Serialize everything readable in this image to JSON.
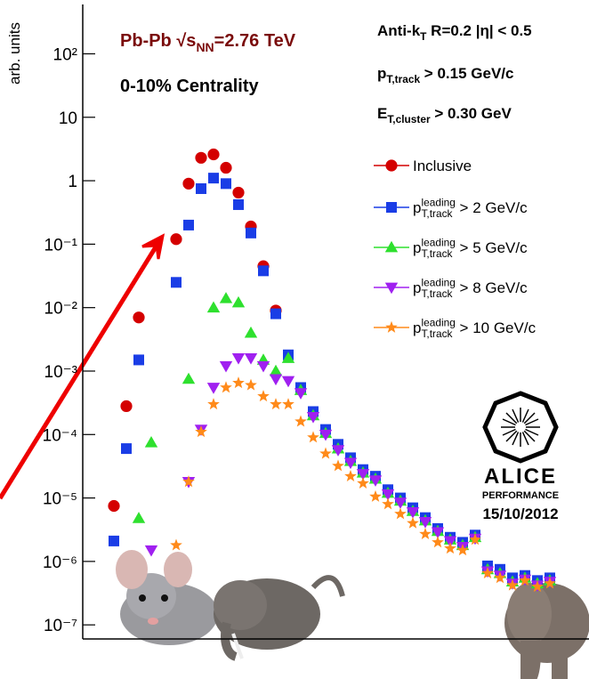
{
  "chart_data": {
    "type": "scatter",
    "ylabel": "arb. units",
    "ylog": true,
    "xlim": [
      -2.5,
      38
    ],
    "ylim": [
      6e-08,
      600
    ],
    "yticks": [
      {
        "value": 1e-07,
        "label": "10⁻⁷"
      },
      {
        "value": 1e-06,
        "label": "10⁻⁶"
      },
      {
        "value": 1e-05,
        "label": "10⁻⁵"
      },
      {
        "value": 0.0001,
        "label": "10⁻⁴"
      },
      {
        "value": 0.001,
        "label": "10⁻³"
      },
      {
        "value": 0.01,
        "label": "10⁻²"
      },
      {
        "value": 0.1,
        "label": "10⁻¹"
      },
      1,
      10,
      {
        "value": 100,
        "label": "10²"
      }
    ],
    "annotations": [
      "Pb-Pb √s_{NN}=2.76 TeV",
      "0-10% Centrality",
      "Anti-k_{T} R=0.2 |η| < 0.5",
      "p_{T,track} > 0.15 GeV/c",
      "E_{T,cluster} > 0.30 GeV"
    ],
    "logo": [
      "ALICE",
      "PERFORMANCE",
      "15/10/2012"
    ],
    "legend": "upper right",
    "series": [
      {
        "name": "Inclusive",
        "color": "#d40000",
        "marker": "circle",
        "x": [
          0,
          1,
          2,
          5,
          6,
          7,
          8,
          9,
          10,
          11,
          12,
          13
        ],
        "values": [
          7.5e-06,
          0.00028,
          0.007,
          0.12,
          0.9,
          2.3,
          2.6,
          1.6,
          0.65,
          0.19,
          0.045,
          0.009
        ]
      },
      {
        "name": "p_{T,track}^{leading} > 2 GeV/c",
        "color": "#1a3de6",
        "marker": "square",
        "x": [
          0,
          1,
          2,
          5,
          6,
          7,
          8,
          9,
          10,
          11,
          12,
          13,
          14,
          15,
          16,
          17,
          18,
          19,
          20,
          21,
          22,
          23,
          24,
          25,
          26,
          27,
          28,
          29,
          30,
          31,
          32,
          33,
          34,
          35
        ],
        "values": [
          2.1e-06,
          6e-05,
          0.0015,
          0.025,
          0.2,
          0.75,
          1.1,
          0.9,
          0.42,
          0.15,
          0.038,
          0.008,
          0.0018,
          0.00055,
          0.00023,
          0.00012,
          7e-05,
          4.3e-05,
          2.8e-05,
          2.2e-05,
          1.35e-05,
          1e-05,
          7e-06,
          4.9e-06,
          3.3e-06,
          2.4e-06,
          2e-06,
          2.6e-06,
          8.5e-07,
          7.5e-07,
          5.5e-07,
          6e-07,
          5e-07,
          5.5e-07
        ]
      },
      {
        "name": "p_{T,track}^{leading} > 5 GeV/c",
        "color": "#2ee02e",
        "marker": "triangle-up",
        "x": [
          2,
          3,
          6,
          8,
          9,
          10,
          11,
          12,
          13,
          14,
          15,
          16,
          17,
          18,
          19,
          20,
          21,
          22,
          23,
          24,
          25,
          26,
          27,
          28,
          29,
          30,
          31,
          32,
          33,
          34,
          35
        ],
        "values": [
          4.8e-06,
          7.5e-05,
          0.00075,
          0.01,
          0.014,
          0.012,
          0.004,
          0.0015,
          0.001,
          0.0016,
          0.0005,
          0.0002,
          0.000105,
          6e-05,
          3.8e-05,
          2.5e-05,
          2e-05,
          1.2e-05,
          9e-06,
          6.2e-06,
          4.4e-06,
          3e-06,
          2.2e-06,
          1.8e-06,
          2.4e-06,
          7.5e-07,
          6.5e-07,
          4.8e-07,
          5.5e-07,
          4.5e-07,
          5e-07
        ]
      },
      {
        "name": "p_{T,track}^{leading} > 8 GeV/c",
        "color": "#a020f0",
        "marker": "triangle-down",
        "x": [
          3,
          6,
          7,
          8,
          9,
          10,
          11,
          12,
          13,
          14,
          15,
          16,
          17,
          18,
          19,
          20,
          21,
          22,
          23,
          24,
          25,
          26,
          27,
          28,
          29,
          30,
          31,
          32,
          33,
          34,
          35
        ],
        "values": [
          1.5e-06,
          1.8e-05,
          0.00012,
          0.00055,
          0.0012,
          0.0016,
          0.0016,
          0.0012,
          0.00075,
          0.0007,
          0.00045,
          0.00019,
          0.0001,
          5.7e-05,
          3.6e-05,
          2.4e-05,
          1.9e-05,
          1.15e-05,
          8.5e-06,
          6e-06,
          4.2e-06,
          2.9e-06,
          2.1e-06,
          1.7e-06,
          2.3e-06,
          7e-07,
          6e-07,
          4.5e-07,
          5.2e-07,
          4.2e-07,
          4.8e-07
        ]
      },
      {
        "name": "p_{T,track}^{leading} > 10 GeV/c",
        "color": "#ff8a1a",
        "marker": "star",
        "x": [
          5,
          6,
          7,
          8,
          9,
          10,
          11,
          12,
          13,
          14,
          15,
          16,
          17,
          18,
          19,
          20,
          21,
          22,
          23,
          24,
          25,
          26,
          27,
          28,
          29,
          30,
          31,
          32,
          33,
          34,
          35
        ],
        "values": [
          1.8e-06,
          1.8e-05,
          0.00011,
          0.0003,
          0.00055,
          0.00065,
          0.0006,
          0.0004,
          0.0003,
          0.0003,
          0.00016,
          9e-05,
          5e-05,
          3.2e-05,
          2.2e-05,
          1.7e-05,
          1.05e-05,
          8e-06,
          5.6e-06,
          4e-06,
          2.7e-06,
          2e-06,
          1.6e-06,
          1.5e-06,
          2.2e-06,
          6.5e-07,
          5.5e-07,
          4.2e-07,
          5e-07,
          4e-07,
          4.5e-07
        ]
      }
    ]
  }
}
